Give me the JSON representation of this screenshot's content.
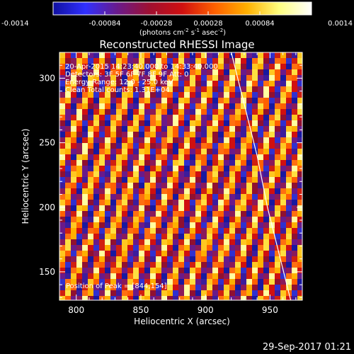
{
  "chart_data": {
    "type": "heatmap",
    "title": "Reconstructed RHESSI Image",
    "xlabel": "Heliocentric X (arcsec)",
    "ylabel": "Heliocentric Y (arcsec)",
    "xlim": [
      787,
      975
    ],
    "ylim": [
      128,
      320
    ],
    "x_ticks": [
      800,
      850,
      900,
      950
    ],
    "y_ticks": [
      150,
      200,
      250,
      300
    ],
    "colorbar": {
      "min": -0.0014,
      "max": 0.0014,
      "ticks": [
        "-0.0014",
        "-0.00084",
        "-0.00028",
        "0.00028",
        "0.00084",
        "0.0014"
      ],
      "unit_label": "(photons cm",
      "unit_label_rest": " s",
      "unit_label_end": " asec",
      "exp_cm": "-2",
      "exp_s": "-1",
      "exp_asec": "-2",
      "colors": [
        "#1010a0",
        "#3030ff",
        "#6a1a8a",
        "#a01030",
        "#d01010",
        "#ff6000",
        "#ffb000",
        "#ffff80",
        "#ffffff"
      ]
    },
    "annotations": [
      "20-Apr-2015 14:23:40.000 to 14:33:40.000",
      "Detectors: 3F 5F 6F 7F 8F 9F Att: 0",
      "Energy Range: 12.0 - 25.0 keV",
      "Clean     Total counts: 1.31E+04"
    ],
    "peak_label": "Position of Peak = [844,154]",
    "limb_curve": [
      [
        920,
        320
      ],
      [
        930,
        280
      ],
      [
        940,
        240
      ],
      [
        948,
        200
      ],
      [
        958,
        160
      ],
      [
        966,
        128
      ]
    ],
    "pattern": "diagonal stripes: yellow/white, red, purple/blue"
  },
  "footer": {
    "timestamp": "29-Sep-2017 01:21"
  }
}
